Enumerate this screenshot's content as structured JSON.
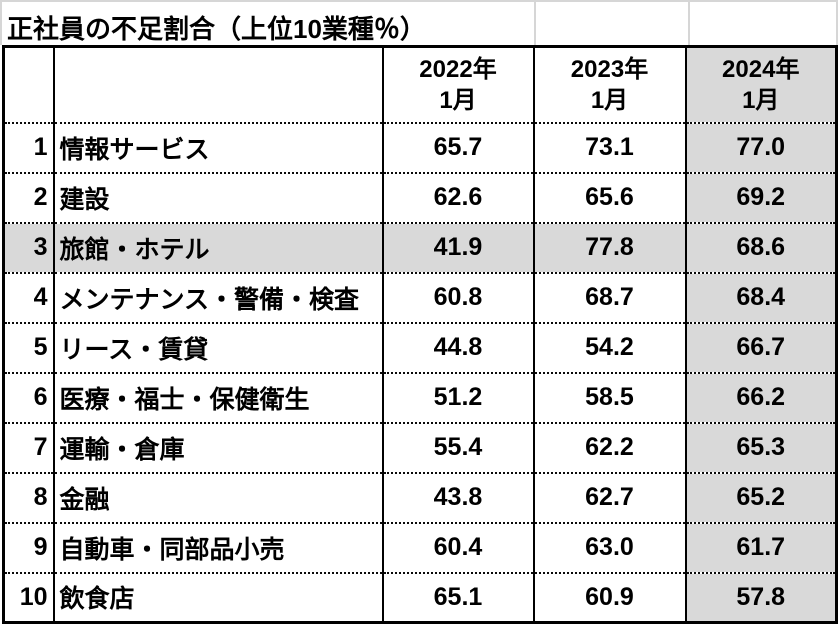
{
  "chart_data": {
    "type": "table",
    "title": "正社員の不足割合（上位10業種％）",
    "unit": "%",
    "columns": [
      {
        "label": "2022年\n1月"
      },
      {
        "label": "2023年\n1月"
      },
      {
        "label": "2024年\n1月",
        "highlighted": true
      }
    ],
    "highlight_color": "#d9d9d9",
    "highlighted_column_index": 2,
    "highlighted_row_rank": "3",
    "rows": [
      {
        "rank": "1",
        "industry": "情報サービス",
        "values": [
          "65.7",
          "73.1",
          "77.0"
        ]
      },
      {
        "rank": "2",
        "industry": "建設",
        "values": [
          "62.6",
          "65.6",
          "69.2"
        ]
      },
      {
        "rank": "3",
        "industry": "旅館・ホテル",
        "values": [
          "41.9",
          "77.8",
          "68.6"
        ],
        "highlighted": true
      },
      {
        "rank": "4",
        "industry": "メンテナンス・警備・検査",
        "values": [
          "60.8",
          "68.7",
          "68.4"
        ]
      },
      {
        "rank": "5",
        "industry": "リース・賃貸",
        "values": [
          "44.8",
          "54.2",
          "66.7"
        ]
      },
      {
        "rank": "6",
        "industry": "医療・福士・保健衛生",
        "values": [
          "51.2",
          "58.5",
          "66.2"
        ]
      },
      {
        "rank": "7",
        "industry": "運輸・倉庫",
        "values": [
          "55.4",
          "62.2",
          "65.3"
        ]
      },
      {
        "rank": "8",
        "industry": "金融",
        "values": [
          "43.8",
          "62.7",
          "65.2"
        ]
      },
      {
        "rank": "9",
        "industry": "自動車・同部品小売",
        "values": [
          "60.4",
          "63.0",
          "61.7"
        ]
      },
      {
        "rank": "10",
        "industry": "飲食店",
        "values": [
          "65.1",
          "60.9",
          "57.8"
        ]
      }
    ]
  }
}
